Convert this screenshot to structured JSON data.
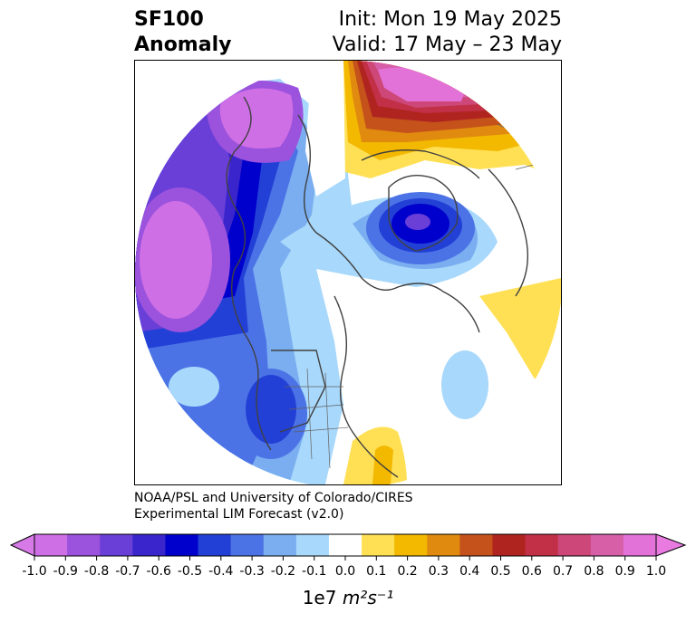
{
  "title": {
    "left_line1": "SF100",
    "left_line2": "Anomaly",
    "right_line1": "Init: Mon 19 May 2025",
    "right_line2": "Valid: 17 May – 23 May"
  },
  "credit": {
    "line1": "NOAA/PSL and University of Colorado/CIRES",
    "line2": "Experimental LIM Forecast (v2.0)"
  },
  "colorbar": {
    "unit_prefix": "1e7",
    "unit": "m²s⁻¹",
    "ticks": [
      "-1.0",
      "-0.9",
      "-0.8",
      "-0.7",
      "-0.6",
      "-0.5",
      "-0.4",
      "-0.3",
      "-0.2",
      "-0.1",
      "0.0",
      "0.1",
      "0.2",
      "0.3",
      "0.4",
      "0.5",
      "0.6",
      "0.7",
      "0.8",
      "0.9",
      "1.0"
    ],
    "colors": [
      "#cf6fe6",
      "#9b52dd",
      "#6a3fd8",
      "#3a25cc",
      "#0000cc",
      "#2340d6",
      "#4c73e6",
      "#7aaef0",
      "#a8d8fb",
      "#ffffff",
      "#ffe055",
      "#f3b800",
      "#e08a10",
      "#c4521a",
      "#b02420",
      "#c23048",
      "#cd4878",
      "#d65fa8",
      "#e272d8"
    ],
    "extend_low": "#d77ae8",
    "extend_high": "#e87ae0"
  }
}
